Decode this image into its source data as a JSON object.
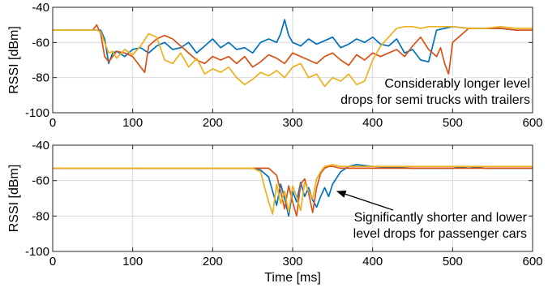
{
  "chart_data": [
    {
      "type": "line",
      "xlabel": "",
      "ylabel": "RSSI [dBm]",
      "xlim": [
        0,
        600
      ],
      "ylim": [
        -100,
        -40
      ],
      "xticks": [
        0,
        100,
        200,
        300,
        400,
        500,
        600
      ],
      "yticks": [
        -100,
        -80,
        -60,
        -40
      ],
      "grid": true,
      "annotation": [
        "Considerably longer level",
        "drops for semi trucks with trailers"
      ],
      "series": [
        {
          "color": "#0072BD",
          "x": [
            0,
            60,
            65,
            70,
            75,
            80,
            90,
            100,
            110,
            120,
            130,
            140,
            150,
            160,
            170,
            180,
            190,
            200,
            210,
            220,
            230,
            240,
            250,
            260,
            270,
            280,
            285,
            290,
            295,
            300,
            310,
            320,
            330,
            340,
            350,
            360,
            370,
            380,
            390,
            400,
            410,
            420,
            430,
            440,
            450,
            460,
            470,
            475,
            480,
            490,
            500,
            520,
            540,
            560,
            580,
            600
          ],
          "values": [
            -53,
            -53,
            -58,
            -72,
            -66,
            -65,
            -68,
            -64,
            -63,
            -66,
            -62,
            -60,
            -64,
            -63,
            -60,
            -66,
            -62,
            -58,
            -63,
            -60,
            -64,
            -63,
            -66,
            -60,
            -58,
            -60,
            -55,
            -47,
            -56,
            -60,
            -62,
            -58,
            -61,
            -59,
            -57,
            -63,
            -61,
            -58,
            -60,
            -57,
            -61,
            -62,
            -58,
            -66,
            -64,
            -70,
            -71,
            -62,
            -53,
            -52,
            -51,
            -52,
            -52,
            -52,
            -53,
            -53
          ]
        },
        {
          "color": "#D95319",
          "x": [
            0,
            50,
            55,
            60,
            65,
            70,
            75,
            80,
            90,
            100,
            110,
            115,
            120,
            130,
            140,
            150,
            160,
            170,
            180,
            190,
            200,
            210,
            220,
            230,
            240,
            250,
            260,
            270,
            280,
            290,
            300,
            310,
            320,
            330,
            340,
            350,
            360,
            370,
            380,
            390,
            400,
            410,
            420,
            430,
            440,
            450,
            460,
            470,
            480,
            485,
            490,
            495,
            500,
            520,
            540,
            560,
            580,
            600
          ],
          "values": [
            -53,
            -53,
            -50,
            -55,
            -68,
            -71,
            -68,
            -65,
            -66,
            -68,
            -74,
            -77,
            -62,
            -58,
            -56,
            -58,
            -62,
            -66,
            -70,
            -72,
            -68,
            -70,
            -68,
            -72,
            -68,
            -74,
            -71,
            -67,
            -69,
            -72,
            -66,
            -68,
            -70,
            -72,
            -68,
            -66,
            -70,
            -73,
            -67,
            -70,
            -66,
            -68,
            -66,
            -64,
            -68,
            -62,
            -57,
            -64,
            -68,
            -63,
            -72,
            -78,
            -60,
            -52,
            -52,
            -52,
            -53,
            -53
          ]
        },
        {
          "color": "#EDB120",
          "x": [
            0,
            55,
            60,
            65,
            70,
            75,
            80,
            90,
            100,
            110,
            120,
            130,
            140,
            150,
            160,
            170,
            180,
            190,
            200,
            210,
            220,
            230,
            240,
            250,
            260,
            270,
            280,
            290,
            300,
            310,
            320,
            330,
            340,
            350,
            360,
            370,
            380,
            390,
            400,
            410,
            420,
            430,
            440,
            450,
            460,
            470,
            480,
            500,
            520,
            540,
            560,
            580,
            600
          ],
          "values": [
            -53,
            -53,
            -54,
            -60,
            -66,
            -65,
            -69,
            -64,
            -67,
            -62,
            -55,
            -57,
            -70,
            -72,
            -66,
            -74,
            -69,
            -78,
            -75,
            -77,
            -74,
            -80,
            -84,
            -81,
            -77,
            -79,
            -76,
            -80,
            -74,
            -72,
            -80,
            -78,
            -85,
            -80,
            -82,
            -78,
            -84,
            -82,
            -70,
            -62,
            -57,
            -52,
            -51,
            -51,
            -52,
            -51,
            -51,
            -51,
            -52,
            -52,
            -51,
            -52,
            -52
          ]
        }
      ]
    },
    {
      "type": "line",
      "xlabel": "Time [ms]",
      "ylabel": "RSSI [dBm]",
      "xlim": [
        0,
        600
      ],
      "ylim": [
        -100,
        -40
      ],
      "xticks": [
        0,
        100,
        200,
        300,
        400,
        500,
        600
      ],
      "yticks": [
        -100,
        -80,
        -60,
        -40
      ],
      "grid": true,
      "annotation": [
        "Significantly shorter and lower",
        "level drops for passenger cars"
      ],
      "series": [
        {
          "color": "#0072BD",
          "x": [
            0,
            50,
            100,
            150,
            200,
            250,
            260,
            270,
            275,
            280,
            285,
            290,
            295,
            300,
            305,
            310,
            315,
            320,
            325,
            330,
            335,
            340,
            345,
            350,
            360,
            370,
            380,
            400,
            450,
            500,
            520,
            540,
            560,
            580,
            600
          ],
          "values": [
            -53,
            -53,
            -53,
            -53,
            -53,
            -53,
            -54,
            -58,
            -66,
            -74,
            -62,
            -70,
            -80,
            -66,
            -72,
            -61,
            -69,
            -64,
            -71,
            -75,
            -69,
            -64,
            -69,
            -62,
            -55,
            -52,
            -51,
            -52,
            -53,
            -53,
            -52,
            -53,
            -53,
            -53,
            -53
          ]
        },
        {
          "color": "#D95319",
          "x": [
            0,
            50,
            100,
            150,
            200,
            250,
            270,
            280,
            285,
            290,
            295,
            300,
            305,
            310,
            315,
            320,
            325,
            330,
            335,
            340,
            345,
            350,
            360,
            380,
            400,
            450,
            500,
            550,
            600
          ],
          "values": [
            -53,
            -53,
            -53,
            -53,
            -53,
            -53,
            -53,
            -57,
            -66,
            -76,
            -63,
            -72,
            -80,
            -62,
            -59,
            -67,
            -78,
            -64,
            -56,
            -53,
            -52,
            -52,
            -53,
            -53,
            -53,
            -53,
            -53,
            -53,
            -53
          ]
        },
        {
          "color": "#EDB120",
          "x": [
            0,
            50,
            100,
            150,
            200,
            250,
            260,
            265,
            270,
            275,
            280,
            285,
            290,
            295,
            300,
            305,
            310,
            315,
            320,
            325,
            330,
            335,
            340,
            350,
            360,
            380,
            400,
            450,
            500,
            550,
            600
          ],
          "values": [
            -53,
            -53,
            -53,
            -53,
            -53,
            -53,
            -55,
            -64,
            -72,
            -79,
            -62,
            -73,
            -66,
            -78,
            -63,
            -69,
            -77,
            -61,
            -66,
            -70,
            -59,
            -55,
            -52,
            -51,
            -52,
            -52,
            -52,
            -52,
            -52,
            -52,
            -52
          ]
        }
      ]
    }
  ]
}
